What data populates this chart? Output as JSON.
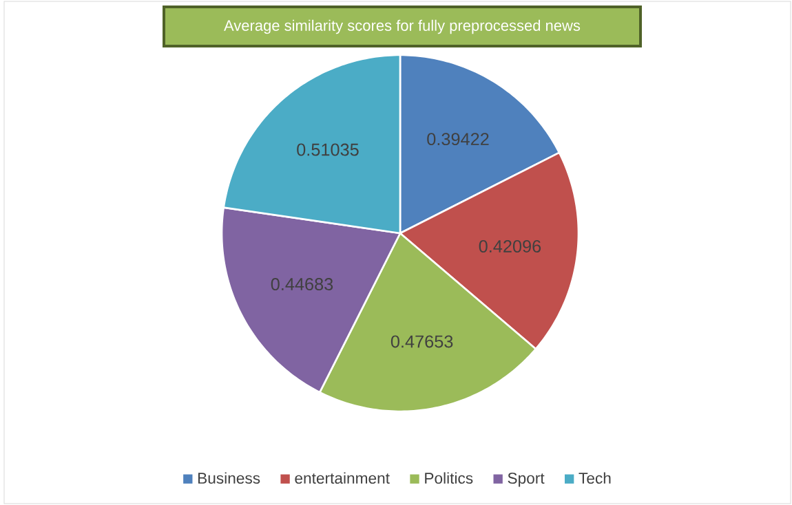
{
  "chart_data": {
    "type": "pie",
    "title": "Average similarity scores for fully preprocessed news",
    "categories": [
      "Business",
      "entertainment",
      "Politics",
      "Sport",
      "Tech"
    ],
    "values": [
      0.39422,
      0.42096,
      0.47653,
      0.44683,
      0.51035
    ],
    "colors": [
      "#4f81bd",
      "#c0504d",
      "#9bbb59",
      "#8064a2",
      "#4bacc6"
    ],
    "data_labels": true,
    "legend": "bottom"
  }
}
